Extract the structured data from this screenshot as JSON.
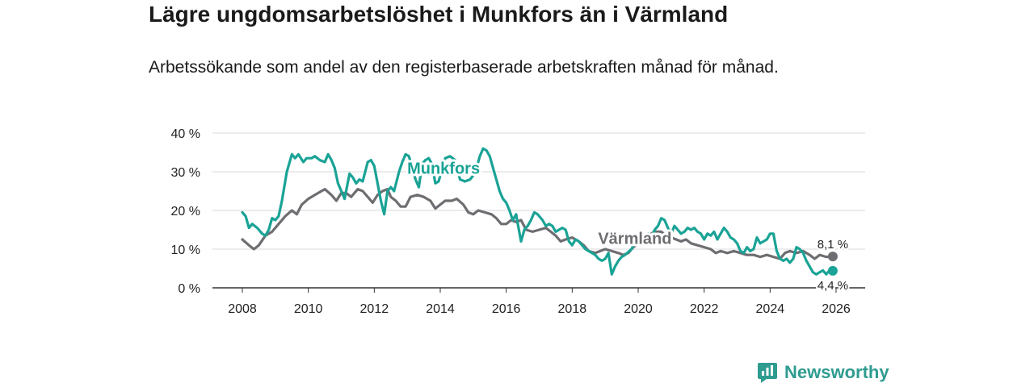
{
  "title": "Lägre ungdomsarbetslöshet i Munkfors än i Värmland",
  "subtitle": "Arbetssökande som andel av den registerbaserade arbetskraften månad för månad.",
  "brand": {
    "name": "Newsworthy",
    "icon": "newsworthy-logo-icon"
  },
  "colors": {
    "munkfors": "#1aa396",
    "varmland": "#6e6e72",
    "grid": "#d9d9d9",
    "axis": "#333333"
  },
  "chart_data": {
    "type": "line",
    "title": "Lägre ungdomsarbetslöshet i Munkfors än i Värmland",
    "xlabel": "",
    "ylabel": "",
    "xlim": [
      2007.2,
      2026.9
    ],
    "ylim": [
      0,
      40
    ],
    "grid": true,
    "x_ticks": [
      2008,
      2010,
      2012,
      2014,
      2016,
      2018,
      2020,
      2022,
      2024,
      2026
    ],
    "x_tick_labels": [
      "2008",
      "2010",
      "2012",
      "2014",
      "2016",
      "2018",
      "2020",
      "2022",
      "2024",
      "2026"
    ],
    "y_ticks": [
      0,
      10,
      20,
      30,
      40
    ],
    "y_tick_labels": [
      "0 %",
      "10 %",
      "20 %",
      "30 %",
      "40 %"
    ],
    "series": [
      {
        "name": "Munkfors",
        "color": "#1aa396",
        "end_label": "4,4 %",
        "points": [
          [
            2008.0,
            19.5
          ],
          [
            2008.1,
            18.5
          ],
          [
            2008.2,
            15.5
          ],
          [
            2008.3,
            16.5
          ],
          [
            2008.45,
            15.5
          ],
          [
            2008.6,
            14.0
          ],
          [
            2008.7,
            13.5
          ],
          [
            2008.8,
            15.0
          ],
          [
            2008.9,
            18.0
          ],
          [
            2009.0,
            17.5
          ],
          [
            2009.1,
            18.5
          ],
          [
            2009.2,
            22.5
          ],
          [
            2009.35,
            30.0
          ],
          [
            2009.5,
            34.5
          ],
          [
            2009.6,
            33.5
          ],
          [
            2009.7,
            34.5
          ],
          [
            2009.85,
            32.5
          ],
          [
            2009.95,
            33.5
          ],
          [
            2010.1,
            33.5
          ],
          [
            2010.2,
            34.0
          ],
          [
            2010.35,
            33.0
          ],
          [
            2010.5,
            32.5
          ],
          [
            2010.6,
            34.5
          ],
          [
            2010.7,
            33.0
          ],
          [
            2010.8,
            31.0
          ],
          [
            2010.9,
            27.0
          ],
          [
            2011.0,
            25.0
          ],
          [
            2011.1,
            23.0
          ],
          [
            2011.25,
            29.5
          ],
          [
            2011.35,
            28.5
          ],
          [
            2011.45,
            27.0
          ],
          [
            2011.55,
            28.0
          ],
          [
            2011.65,
            27.5
          ],
          [
            2011.8,
            32.5
          ],
          [
            2011.9,
            33.0
          ],
          [
            2012.0,
            31.5
          ],
          [
            2012.1,
            27.0
          ],
          [
            2012.2,
            22.5
          ],
          [
            2012.3,
            19.0
          ],
          [
            2012.4,
            25.0
          ],
          [
            2012.5,
            26.0
          ],
          [
            2012.6,
            25.0
          ],
          [
            2012.75,
            30.0
          ],
          [
            2012.85,
            32.5
          ],
          [
            2012.95,
            34.5
          ],
          [
            2013.05,
            34.0
          ],
          [
            2013.15,
            31.0
          ],
          [
            2013.25,
            28.0
          ],
          [
            2013.35,
            26.0
          ],
          [
            2013.45,
            32.0
          ],
          [
            2013.55,
            33.0
          ],
          [
            2013.65,
            33.5
          ],
          [
            2013.75,
            32.0
          ],
          [
            2013.85,
            27.0
          ],
          [
            2013.95,
            27.5
          ],
          [
            2014.0,
            29.0
          ],
          [
            2014.15,
            33.5
          ],
          [
            2014.3,
            34.0
          ],
          [
            2014.45,
            33.0
          ],
          [
            2014.6,
            28.0
          ],
          [
            2014.75,
            27.5
          ],
          [
            2014.9,
            28.0
          ],
          [
            2015.0,
            29.0
          ],
          [
            2015.1,
            31.0
          ],
          [
            2015.2,
            34.0
          ],
          [
            2015.3,
            36.0
          ],
          [
            2015.4,
            35.5
          ],
          [
            2015.5,
            34.0
          ],
          [
            2015.6,
            31.0
          ],
          [
            2015.7,
            28.0
          ],
          [
            2015.8,
            25.0
          ],
          [
            2015.9,
            23.0
          ],
          [
            2016.0,
            22.0
          ],
          [
            2016.1,
            20.0
          ],
          [
            2016.2,
            17.5
          ],
          [
            2016.3,
            19.0
          ],
          [
            2016.35,
            16.5
          ],
          [
            2016.45,
            12.0
          ],
          [
            2016.55,
            15.0
          ],
          [
            2016.65,
            16.0
          ],
          [
            2016.75,
            17.5
          ],
          [
            2016.85,
            19.5
          ],
          [
            2016.95,
            19.0
          ],
          [
            2017.1,
            17.5
          ],
          [
            2017.2,
            16.0
          ],
          [
            2017.3,
            16.5
          ],
          [
            2017.4,
            16.0
          ],
          [
            2017.5,
            14.5
          ],
          [
            2017.6,
            15.0
          ],
          [
            2017.7,
            15.5
          ],
          [
            2017.8,
            15.0
          ],
          [
            2017.9,
            12.0
          ],
          [
            2018.0,
            11.0
          ],
          [
            2018.1,
            12.5
          ],
          [
            2018.2,
            12.0
          ],
          [
            2018.3,
            11.0
          ],
          [
            2018.4,
            10.0
          ],
          [
            2018.5,
            9.5
          ],
          [
            2018.6,
            9.0
          ],
          [
            2018.7,
            8.5
          ],
          [
            2018.8,
            7.5
          ],
          [
            2018.9,
            7.0
          ],
          [
            2019.0,
            7.5
          ],
          [
            2019.1,
            9.0
          ],
          [
            2019.2,
            3.5
          ],
          [
            2019.3,
            5.5
          ],
          [
            2019.4,
            7.0
          ],
          [
            2019.5,
            8.0
          ],
          [
            2019.6,
            8.5
          ],
          [
            2019.8,
            10.0
          ],
          [
            2020.0,
            13.5
          ],
          [
            2020.1,
            14.5
          ],
          [
            2020.2,
            13.5
          ],
          [
            2020.3,
            14.0
          ],
          [
            2020.4,
            13.0
          ],
          [
            2020.5,
            15.0
          ],
          [
            2020.6,
            16.0
          ],
          [
            2020.7,
            18.0
          ],
          [
            2020.8,
            17.5
          ],
          [
            2020.9,
            15.5
          ],
          [
            2021.0,
            14.0
          ],
          [
            2021.1,
            16.0
          ],
          [
            2021.2,
            15.0
          ],
          [
            2021.3,
            14.0
          ],
          [
            2021.4,
            14.5
          ],
          [
            2021.5,
            15.5
          ],
          [
            2021.6,
            15.0
          ],
          [
            2021.7,
            15.5
          ],
          [
            2021.8,
            14.5
          ],
          [
            2021.9,
            14.0
          ],
          [
            2022.0,
            12.5
          ],
          [
            2022.1,
            14.0
          ],
          [
            2022.2,
            13.5
          ],
          [
            2022.3,
            14.5
          ],
          [
            2022.4,
            12.5
          ],
          [
            2022.5,
            14.0
          ],
          [
            2022.6,
            15.5
          ],
          [
            2022.7,
            14.5
          ],
          [
            2022.8,
            13.0
          ],
          [
            2022.9,
            12.5
          ],
          [
            2023.0,
            11.5
          ],
          [
            2023.1,
            9.5
          ],
          [
            2023.2,
            9.0
          ],
          [
            2023.3,
            10.5
          ],
          [
            2023.4,
            9.5
          ],
          [
            2023.5,
            10.0
          ],
          [
            2023.6,
            13.0
          ],
          [
            2023.7,
            11.5
          ],
          [
            2023.8,
            12.0
          ],
          [
            2023.9,
            12.5
          ],
          [
            2024.0,
            14.0
          ],
          [
            2024.1,
            14.0
          ],
          [
            2024.2,
            9.5
          ],
          [
            2024.3,
            7.5
          ],
          [
            2024.4,
            7.0
          ],
          [
            2024.5,
            7.5
          ],
          [
            2024.6,
            6.5
          ],
          [
            2024.7,
            7.5
          ],
          [
            2024.8,
            10.5
          ],
          [
            2024.9,
            10.0
          ],
          [
            2025.0,
            9.0
          ],
          [
            2025.1,
            7.0
          ],
          [
            2025.2,
            5.5
          ],
          [
            2025.3,
            4.0
          ],
          [
            2025.4,
            3.5
          ],
          [
            2025.5,
            4.0
          ],
          [
            2025.6,
            4.5
          ],
          [
            2025.7,
            3.5
          ],
          [
            2025.8,
            4.5
          ],
          [
            2025.9,
            4.4
          ]
        ]
      },
      {
        "name": "Värmland",
        "color": "#6e6e72",
        "end_label": "8,1 %",
        "points": [
          [
            2008.0,
            12.5
          ],
          [
            2008.2,
            11.0
          ],
          [
            2008.35,
            10.0
          ],
          [
            2008.5,
            11.0
          ],
          [
            2008.7,
            13.5
          ],
          [
            2008.9,
            14.5
          ],
          [
            2009.1,
            16.5
          ],
          [
            2009.3,
            18.5
          ],
          [
            2009.5,
            20.0
          ],
          [
            2009.65,
            19.0
          ],
          [
            2009.8,
            21.5
          ],
          [
            2010.0,
            23.0
          ],
          [
            2010.2,
            24.0
          ],
          [
            2010.4,
            25.0
          ],
          [
            2010.5,
            25.5
          ],
          [
            2010.7,
            24.0
          ],
          [
            2010.85,
            22.5
          ],
          [
            2011.0,
            24.5
          ],
          [
            2011.15,
            24.5
          ],
          [
            2011.3,
            23.5
          ],
          [
            2011.5,
            25.5
          ],
          [
            2011.65,
            25.0
          ],
          [
            2011.8,
            23.5
          ],
          [
            2011.95,
            22.0
          ],
          [
            2012.1,
            24.0
          ],
          [
            2012.25,
            25.0
          ],
          [
            2012.4,
            25.5
          ],
          [
            2012.5,
            23.5
          ],
          [
            2012.65,
            22.5
          ],
          [
            2012.8,
            21.0
          ],
          [
            2012.95,
            21.0
          ],
          [
            2013.1,
            23.5
          ],
          [
            2013.3,
            24.0
          ],
          [
            2013.5,
            23.5
          ],
          [
            2013.7,
            22.5
          ],
          [
            2013.85,
            20.5
          ],
          [
            2014.0,
            21.5
          ],
          [
            2014.15,
            22.5
          ],
          [
            2014.35,
            22.5
          ],
          [
            2014.5,
            23.0
          ],
          [
            2014.7,
            21.5
          ],
          [
            2014.85,
            19.5
          ],
          [
            2015.0,
            19.0
          ],
          [
            2015.15,
            20.0
          ],
          [
            2015.35,
            19.5
          ],
          [
            2015.55,
            19.0
          ],
          [
            2015.7,
            18.0
          ],
          [
            2015.85,
            16.5
          ],
          [
            2016.0,
            16.5
          ],
          [
            2016.15,
            17.5
          ],
          [
            2016.3,
            17.0
          ],
          [
            2016.45,
            17.5
          ],
          [
            2016.6,
            15.0
          ],
          [
            2016.8,
            14.5
          ],
          [
            2017.0,
            15.0
          ],
          [
            2017.2,
            15.5
          ],
          [
            2017.35,
            14.5
          ],
          [
            2017.5,
            13.5
          ],
          [
            2017.65,
            12.0
          ],
          [
            2017.8,
            12.5
          ],
          [
            2018.0,
            13.0
          ],
          [
            2018.2,
            12.0
          ],
          [
            2018.35,
            11.0
          ],
          [
            2018.5,
            9.5
          ],
          [
            2018.7,
            9.0
          ],
          [
            2018.85,
            9.5
          ],
          [
            2019.0,
            10.0
          ],
          [
            2019.2,
            9.5
          ],
          [
            2019.4,
            9.0
          ],
          [
            2019.55,
            8.5
          ],
          [
            2019.7,
            9.0
          ],
          [
            2019.85,
            10.5
          ],
          [
            2020.1,
            12.0
          ],
          [
            2020.3,
            13.5
          ],
          [
            2020.5,
            14.5
          ],
          [
            2020.7,
            14.5
          ],
          [
            2020.85,
            13.5
          ],
          [
            2021.0,
            13.0
          ],
          [
            2021.15,
            12.5
          ],
          [
            2021.3,
            12.0
          ],
          [
            2021.45,
            12.5
          ],
          [
            2021.6,
            11.5
          ],
          [
            2021.8,
            11.0
          ],
          [
            2022.0,
            10.5
          ],
          [
            2022.2,
            10.0
          ],
          [
            2022.35,
            9.0
          ],
          [
            2022.5,
            9.5
          ],
          [
            2022.7,
            9.0
          ],
          [
            2022.9,
            9.5
          ],
          [
            2023.1,
            9.0
          ],
          [
            2023.3,
            8.5
          ],
          [
            2023.5,
            8.5
          ],
          [
            2023.7,
            8.0
          ],
          [
            2023.9,
            8.5
          ],
          [
            2024.1,
            8.0
          ],
          [
            2024.3,
            7.5
          ],
          [
            2024.45,
            9.0
          ],
          [
            2024.6,
            9.5
          ],
          [
            2024.8,
            9.0
          ],
          [
            2025.0,
            9.5
          ],
          [
            2025.2,
            8.5
          ],
          [
            2025.35,
            7.5
          ],
          [
            2025.5,
            8.5
          ],
          [
            2025.7,
            8.0
          ],
          [
            2025.9,
            8.1
          ]
        ]
      }
    ],
    "series_labels": [
      {
        "text": "Munkfors",
        "series": "Munkfors",
        "x": 2014.1,
        "y": 29.5
      },
      {
        "text": "Värmland",
        "series": "Värmland",
        "x": 2019.9,
        "y": 11.4
      }
    ]
  }
}
